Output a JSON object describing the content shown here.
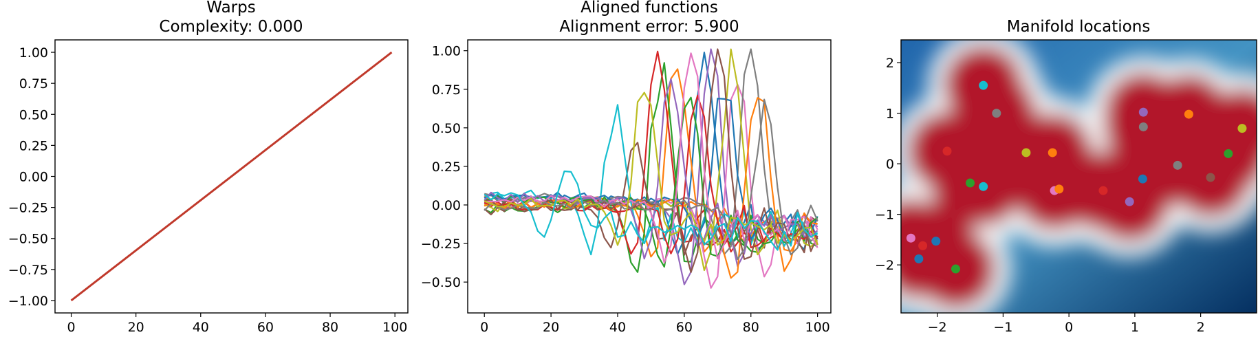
{
  "chart_data": [
    {
      "type": "line",
      "title": "Warps",
      "subtitle": "Complexity: 0.000",
      "xlabel": "",
      "ylabel": "",
      "xlim": [
        -5,
        104
      ],
      "ylim": [
        -1.1,
        1.1
      ],
      "xticks": [
        0,
        20,
        40,
        60,
        80,
        100
      ],
      "yticks": [
        -1.0,
        -0.75,
        -0.5,
        -0.25,
        0.0,
        0.25,
        0.5,
        0.75,
        1.0
      ],
      "ytick_labels": [
        "−1.00",
        "−0.75",
        "−0.50",
        "−0.25",
        "0.00",
        "0.25",
        "0.50",
        "0.75",
        "1.00"
      ],
      "series": [
        {
          "color": "#c0392b",
          "x": [
            0,
            99
          ],
          "y": [
            -1.0,
            1.0
          ]
        }
      ]
    },
    {
      "type": "line",
      "title": "Aligned functions",
      "subtitle": "Alignment error: 5.900",
      "xlabel": "",
      "ylabel": "",
      "xlim": [
        -5,
        104
      ],
      "ylim": [
        -0.7,
        1.07
      ],
      "xticks": [
        0,
        20,
        40,
        60,
        80,
        100
      ],
      "yticks": [
        -0.5,
        -0.25,
        0.0,
        0.25,
        0.5,
        0.75,
        1.0
      ],
      "ytick_labels": [
        "−0.50",
        "−0.25",
        "0.00",
        "0.25",
        "0.50",
        "0.75",
        "1.00"
      ],
      "pulses": [
        {
          "color": "#1f77b4",
          "center": 66,
          "amp": 0.92,
          "trough": -0.38,
          "offset": 0.05
        },
        {
          "color": "#ff7f0e",
          "center": 58,
          "amp": 0.96,
          "trough": -0.42,
          "offset": 0.03
        },
        {
          "color": "#2ca02c",
          "center": 53,
          "amp": 0.9,
          "trough": -0.52,
          "offset": -0.02
        },
        {
          "color": "#d62728",
          "center": 52,
          "amp": 0.94,
          "trough": -0.35,
          "offset": 0.01
        },
        {
          "color": "#9467bd",
          "center": 68,
          "amp": 0.97,
          "trough": -0.58,
          "offset": 0.04
        },
        {
          "color": "#8c564b",
          "center": 45,
          "amp": 0.45,
          "trough": -0.3,
          "offset": -0.03
        },
        {
          "color": "#e377c2",
          "center": 76,
          "amp": 0.85,
          "trough": -0.6,
          "offset": 0.02
        },
        {
          "color": "#7f7f7f",
          "center": 80,
          "amp": 0.95,
          "trough": -0.4,
          "offset": 0.06
        },
        {
          "color": "#bcbd22",
          "center": 74,
          "amp": 0.9,
          "trough": -0.45,
          "offset": -0.01
        },
        {
          "color": "#17becf",
          "center": 39,
          "amp": 0.55,
          "trough": -0.37,
          "offset": 0.08
        },
        {
          "color": "#1f77b4",
          "center": 72,
          "amp": 0.82,
          "trough": -0.3,
          "offset": 0.07
        },
        {
          "color": "#ff7f0e",
          "center": 82,
          "amp": 0.88,
          "trough": -0.55,
          "offset": 0.0
        },
        {
          "color": "#2ca02c",
          "center": 61,
          "amp": 0.8,
          "trough": -0.48,
          "offset": 0.03
        },
        {
          "color": "#d62728",
          "center": 64,
          "amp": 0.65,
          "trough": -0.35,
          "offset": -0.02
        },
        {
          "color": "#9467bd",
          "center": 56,
          "amp": 0.9,
          "trough": -0.4,
          "offset": 0.05
        },
        {
          "color": "#8c564b",
          "center": 70,
          "amp": 0.98,
          "trough": -0.5,
          "offset": 0.0
        },
        {
          "color": "#e377c2",
          "center": 62,
          "amp": 0.92,
          "trough": -0.45,
          "offset": 0.04
        },
        {
          "color": "#7f7f7f",
          "center": 84,
          "amp": 0.6,
          "trough": -0.4,
          "offset": -0.01
        },
        {
          "color": "#bcbd22",
          "center": 48,
          "amp": 0.78,
          "trough": -0.32,
          "offset": 0.02
        },
        {
          "color": "#17becf",
          "center": 25,
          "amp": 0.2,
          "trough": -0.25,
          "offset": 0.06
        }
      ]
    },
    {
      "type": "scatter",
      "title": "Manifold locations",
      "xlabel": "",
      "ylabel": "",
      "xlim": [
        -2.55,
        2.85
      ],
      "ylim": [
        -2.95,
        2.45
      ],
      "xticks": [
        -2,
        -1,
        0,
        1,
        2
      ],
      "xtick_labels": [
        "−2",
        "−1",
        "0",
        "1",
        "2"
      ],
      "yticks": [
        -2,
        -1,
        0,
        1,
        2
      ],
      "ytick_labels": [
        "−2",
        "−1",
        "0",
        "1",
        "2"
      ],
      "background": "density heatmap (RdBu colormap)",
      "points": [
        {
          "x": -1.3,
          "y": 1.55,
          "color": "#17becf"
        },
        {
          "x": -1.1,
          "y": 1.0,
          "color": "#7f7f7f"
        },
        {
          "x": -1.85,
          "y": 0.25,
          "color": "#d62728"
        },
        {
          "x": -0.65,
          "y": 0.22,
          "color": "#bcbd22"
        },
        {
          "x": -0.25,
          "y": 0.22,
          "color": "#ff7f0e"
        },
        {
          "x": -1.5,
          "y": -0.38,
          "color": "#2ca02c"
        },
        {
          "x": -1.3,
          "y": -0.45,
          "color": "#17becf"
        },
        {
          "x": -0.22,
          "y": -0.53,
          "color": "#e377c2"
        },
        {
          "x": -0.15,
          "y": -0.5,
          "color": "#ff7f0e"
        },
        {
          "x": 0.52,
          "y": -0.53,
          "color": "#d62728"
        },
        {
          "x": 0.92,
          "y": -0.75,
          "color": "#9467bd"
        },
        {
          "x": 1.12,
          "y": -0.3,
          "color": "#1f77b4"
        },
        {
          "x": 1.13,
          "y": 1.02,
          "color": "#9467bd"
        },
        {
          "x": 1.13,
          "y": 0.73,
          "color": "#7f7f7f"
        },
        {
          "x": 1.82,
          "y": 0.98,
          "color": "#ff7f0e"
        },
        {
          "x": 1.65,
          "y": -0.03,
          "color": "#7f7f7f"
        },
        {
          "x": 2.15,
          "y": -0.27,
          "color": "#8c564b"
        },
        {
          "x": 2.42,
          "y": 0.2,
          "color": "#2ca02c"
        },
        {
          "x": 2.63,
          "y": 0.7,
          "color": "#bcbd22"
        },
        {
          "x": -2.4,
          "y": -1.47,
          "color": "#e377c2"
        },
        {
          "x": -2.22,
          "y": -1.62,
          "color": "#d62728"
        },
        {
          "x": -2.02,
          "y": -1.53,
          "color": "#1f77b4"
        },
        {
          "x": -2.28,
          "y": -1.88,
          "color": "#1f77b4"
        },
        {
          "x": -1.72,
          "y": -2.08,
          "color": "#2ca02c"
        }
      ]
    }
  ]
}
